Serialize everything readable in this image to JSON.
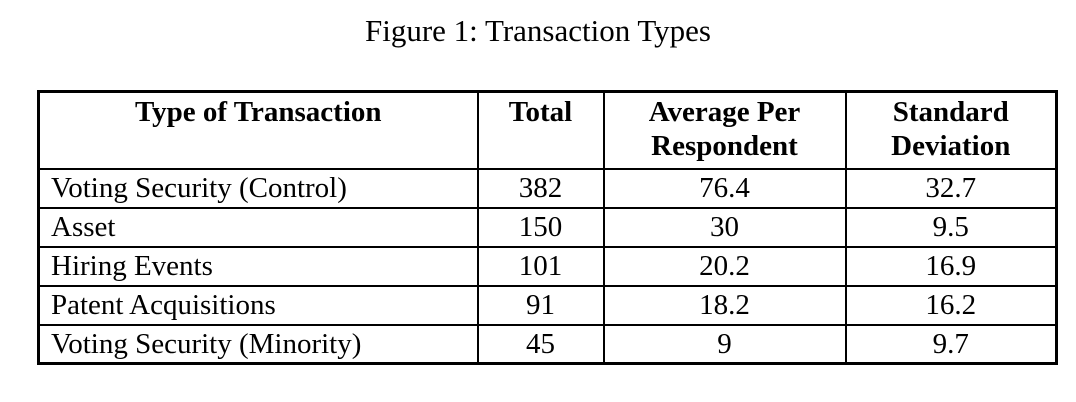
{
  "title": "Figure 1: Transaction Types",
  "colors": {
    "text": "#000000",
    "border": "#000000",
    "background": "#ffffff"
  },
  "table": {
    "headers": [
      "Type of Transaction",
      "Total",
      "Average Per Respondent",
      "Standard Deviation"
    ],
    "rows": [
      [
        "Voting Security (Control)",
        "382",
        "76.4",
        "32.7"
      ],
      [
        "Asset",
        "150",
        "30",
        "9.5"
      ],
      [
        "Hiring Events",
        "101",
        "20.2",
        "16.9"
      ],
      [
        "Patent Acquisitions",
        "91",
        "18.2",
        "16.2"
      ],
      [
        "Voting Security (Minority)",
        "45",
        "9",
        "9.7"
      ]
    ]
  },
  "chart_data": {
    "type": "table",
    "title": "Figure 1: Transaction Types",
    "columns": [
      "Type of Transaction",
      "Total",
      "Average Per Respondent",
      "Standard Deviation"
    ],
    "rows": [
      [
        "Voting Security (Control)",
        382,
        76.4,
        32.7
      ],
      [
        "Asset",
        150,
        30,
        9.5
      ],
      [
        "Hiring Events",
        101,
        20.2,
        16.9
      ],
      [
        "Patent Acquisitions",
        91,
        18.2,
        16.2
      ],
      [
        "Voting Security (Minority)",
        45,
        9,
        9.7
      ]
    ]
  }
}
